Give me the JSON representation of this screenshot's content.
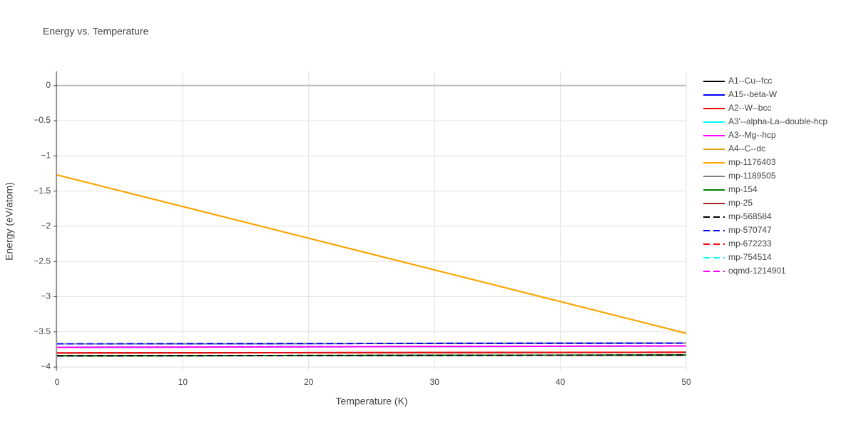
{
  "chart_data": {
    "type": "line",
    "title": "Energy vs. Temperature",
    "xlabel": "Temperature (K)",
    "ylabel": "Energy (eV/atom)",
    "x": [
      0,
      50
    ],
    "xlim": [
      0,
      50
    ],
    "xticks": [
      0,
      10,
      20,
      30,
      40,
      50
    ],
    "ylim": [
      -4.05,
      0.2
    ],
    "yticks": [
      {
        "value": -4,
        "label": "−4"
      },
      {
        "value": -3.5,
        "label": "−3.5"
      },
      {
        "value": -3,
        "label": "−3"
      },
      {
        "value": -2.5,
        "label": "−2.5"
      },
      {
        "value": -2,
        "label": "−2"
      },
      {
        "value": -1.5,
        "label": "−1.5"
      },
      {
        "value": -1,
        "label": "−1"
      },
      {
        "value": -0.5,
        "label": "−0.5"
      },
      0
    ],
    "grid": true,
    "series": [
      {
        "name": "A1--Cu--fcc",
        "color": "#000000",
        "dash": false,
        "values": [
          -3.84,
          -3.83
        ]
      },
      {
        "name": "A15--beta-W",
        "color": "#0000ff",
        "dash": false,
        "values": [
          -3.67,
          -3.66
        ]
      },
      {
        "name": "A2--W--bcc",
        "color": "#ff0000",
        "dash": false,
        "values": [
          -3.8,
          -3.79
        ]
      },
      {
        "name": "A3'--alpha-La--double-hcp",
        "color": "#00ffff",
        "dash": false,
        "values": [
          -3.72,
          -3.7
        ]
      },
      {
        "name": "A3--Mg--hcp",
        "color": "#ff00ff",
        "dash": false,
        "values": [
          -3.72,
          -3.7
        ]
      },
      {
        "name": "A4--C--dc",
        "color": "#daa520",
        "dash": false,
        "values": [
          -1.27,
          -3.52
        ]
      },
      {
        "name": "mp-1176403",
        "color": "#ffa500",
        "dash": false,
        "values": [
          -1.27,
          -3.52
        ]
      },
      {
        "name": "mp-1189505",
        "color": "#808080",
        "dash": false,
        "values": [
          -3.67,
          -3.66
        ]
      },
      {
        "name": "mp-154",
        "color": "#008000",
        "dash": false,
        "values": [
          -3.84,
          -3.83
        ]
      },
      {
        "name": "mp-25",
        "color": "#a52a2a",
        "dash": false,
        "values": [
          -3.8,
          -3.79
        ]
      },
      {
        "name": "mp-568584",
        "color": "#000000",
        "dash": true,
        "values": [
          -3.84,
          -3.83
        ]
      },
      {
        "name": "mp-570747",
        "color": "#0000ff",
        "dash": true,
        "values": [
          -3.67,
          -3.66
        ]
      },
      {
        "name": "mp-672233",
        "color": "#ff0000",
        "dash": true,
        "values": [
          -3.8,
          -3.79
        ]
      },
      {
        "name": "mp-754514",
        "color": "#00ffff",
        "dash": true,
        "values": [
          -3.72,
          -3.7
        ]
      },
      {
        "name": "oqmd-1214901",
        "color": "#ff00ff",
        "dash": true,
        "values": [
          -3.72,
          -3.7
        ]
      }
    ]
  }
}
